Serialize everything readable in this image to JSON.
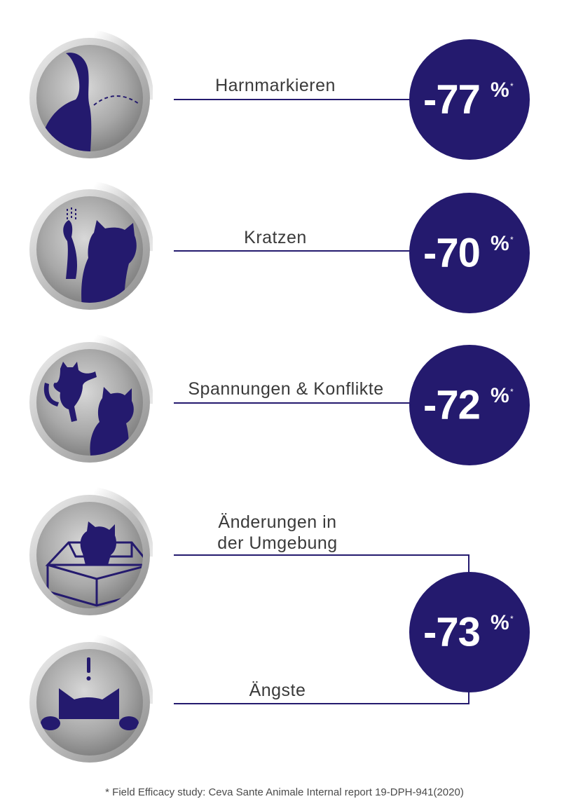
{
  "rows": [
    {
      "label": "Harnmarkieren",
      "value": "-77",
      "percent": "%",
      "asterisk": "*",
      "icon": "cat-urine-marking-icon"
    },
    {
      "label": "Kratzen",
      "value": "-70",
      "percent": "%",
      "asterisk": "*",
      "icon": "cat-scratching-icon"
    },
    {
      "label": "Spannungen & Konflikte",
      "value": "-72",
      "percent": "%",
      "asterisk": "*",
      "icon": "cats-conflict-icon"
    },
    {
      "label_line1": "Änderungen in",
      "label_line2": "der Umgebung",
      "icon": "cat-in-box-icon"
    },
    {
      "label": "Ängste",
      "icon": "cat-fear-icon"
    }
  ],
  "combined_badge": {
    "value": "-73",
    "percent": "%",
    "asterisk": "*"
  },
  "footnote": "* Field Efficacy study: Ceva Sante Animale Internal report 19-DPH-941(2020)",
  "colors": {
    "navy": "#241a6e",
    "silver": "#b8b8b8",
    "text": "#3a3a3a"
  }
}
